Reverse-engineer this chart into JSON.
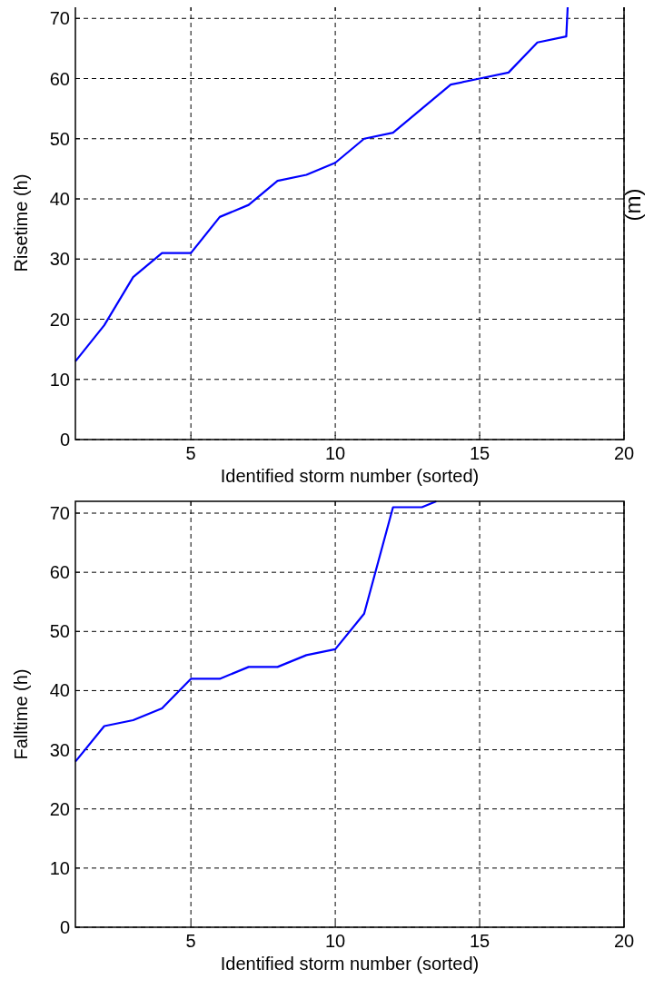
{
  "chart_data": [
    {
      "type": "line",
      "xlabel": "Identified storm number (sorted)",
      "ylabel": "Risetime (h)",
      "annotations": [
        "(m)"
      ],
      "xlim": [
        1,
        20
      ],
      "ylim": [
        0,
        72
      ],
      "xticks": [
        5,
        10,
        15,
        20
      ],
      "yticks": [
        0,
        10,
        20,
        30,
        40,
        50,
        60,
        70
      ],
      "grid": true,
      "line_style": "solid",
      "series": [
        {
          "color": "#0000ff",
          "x": [
            1,
            2,
            3,
            4,
            5,
            6,
            7,
            8,
            9,
            10,
            11,
            12,
            13,
            14,
            15,
            16,
            17,
            18,
            18.05
          ],
          "values": [
            13,
            19,
            27,
            31,
            31,
            37,
            39,
            43,
            44,
            46,
            50,
            51,
            55,
            59,
            60,
            61,
            66,
            67,
            72
          ]
        }
      ]
    },
    {
      "type": "line",
      "xlabel": "Identified storm number (sorted)",
      "ylabel": "Falltime (h)",
      "xlim": [
        1,
        20
      ],
      "ylim": [
        0,
        72
      ],
      "xticks": [
        5,
        10,
        15,
        20
      ],
      "yticks": [
        0,
        10,
        20,
        30,
        40,
        50,
        60,
        70
      ],
      "grid": true,
      "line_style": "solid",
      "series": [
        {
          "color": "#0000ff",
          "x": [
            1,
            2,
            3,
            4,
            5,
            6,
            7,
            8,
            9,
            10,
            11,
            12,
            13,
            13.5
          ],
          "values": [
            28,
            34,
            35,
            37,
            42,
            42,
            44,
            44,
            46,
            47,
            53,
            71,
            71,
            72
          ]
        }
      ]
    }
  ]
}
